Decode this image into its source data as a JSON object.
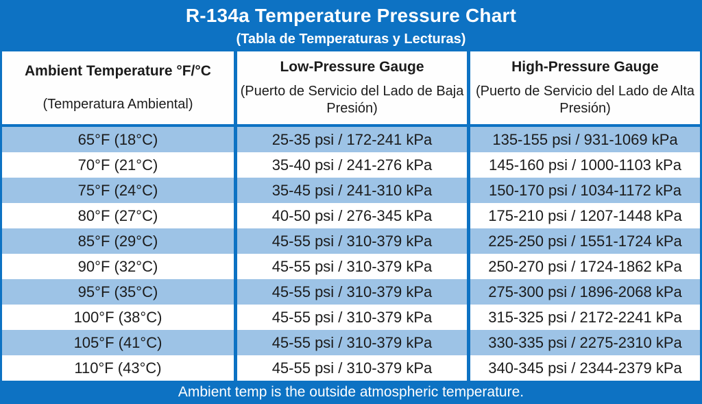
{
  "header": {
    "title": "R-134a Temperature Pressure Chart",
    "subtitle": "(Tabla de Temperaturas y Lecturas)"
  },
  "chart_data": {
    "type": "table",
    "title": "R-134a Temperature Pressure Chart",
    "subtitle": "(Tabla de Temperaturas y Lecturas)",
    "columns": [
      {
        "label": "Ambient Temperature °F/°C",
        "sublabel": "(Temperatura Ambiental)"
      },
      {
        "label": "Low-Pressure Gauge",
        "sublabel": "(Puerto de Servicio del Lado de Baja Presión)"
      },
      {
        "label": "High-Pressure Gauge",
        "sublabel": "(Puerto de Servicio del Lado de Alta Presión)"
      }
    ],
    "rows": [
      [
        "65°F (18°C)",
        "25-35 psi / 172-241 kPa",
        "135-155 psi / 931-1069 kPa"
      ],
      [
        "70°F (21°C)",
        "35-40 psi / 241-276 kPa",
        "145-160 psi / 1000-1103 kPa"
      ],
      [
        "75°F (24°C)",
        "35-45 psi / 241-310 kPa",
        "150-170 psi / 1034-1172 kPa"
      ],
      [
        "80°F (27°C)",
        "40-50 psi / 276-345 kPa",
        "175-210 psi / 1207-1448 kPa"
      ],
      [
        "85°F (29°C)",
        "45-55 psi / 310-379 kPa",
        "225-250 psi / 1551-1724 kPa"
      ],
      [
        "90°F (32°C)",
        "45-55 psi / 310-379 kPa",
        "250-270 psi / 1724-1862 kPa"
      ],
      [
        "95°F (35°C)",
        "45-55 psi / 310-379 kPa",
        "275-300 psi / 1896-2068 kPa"
      ],
      [
        "100°F (38°C)",
        "45-55 psi / 310-379 kPa",
        "315-325 psi / 2172-2241 kPa"
      ],
      [
        "105°F (41°C)",
        "45-55 psi / 310-379 kPa",
        "330-335 psi / 2275-2310 kPa"
      ],
      [
        "110°F (43°C)",
        "45-55 psi / 310-379 kPa",
        "340-345 psi / 2344-2379 kPa"
      ]
    ],
    "row_banding": "odd rows light blue, even rows white",
    "note": "Ambient temp is the outside atmospheric temperature."
  },
  "footer": {
    "note": "Ambient temp is the outside atmospheric temperature."
  },
  "colors": {
    "brand_blue": "#0D72C3",
    "row_alt_blue": "#9DC3E6",
    "row_white": "#FFFFFF",
    "text_black": "#1B1B1B",
    "header_text_white": "#FFFFFF"
  }
}
